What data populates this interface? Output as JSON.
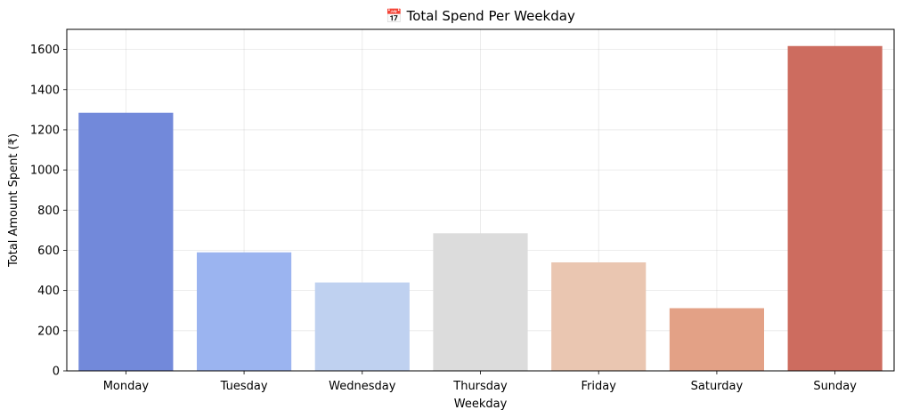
{
  "chart_data": {
    "type": "bar",
    "title": "📅 Total Spend Per Weekday",
    "xlabel": "Weekday",
    "ylabel": "Total Amount Spent (₹)",
    "categories": [
      "Monday",
      "Tuesday",
      "Wednesday",
      "Thursday",
      "Friday",
      "Saturday",
      "Sunday"
    ],
    "values": [
      1285,
      590,
      440,
      685,
      540,
      312,
      1617
    ],
    "colors": [
      "#7289da",
      "#9bb4f0",
      "#bfd1f0",
      "#dcdcdc",
      "#eac6b1",
      "#e3a186",
      "#cd6c5f"
    ],
    "ylim": [
      0,
      1700
    ],
    "yticks": [
      0,
      200,
      400,
      600,
      800,
      1000,
      1200,
      1400,
      1600
    ],
    "grid": true,
    "legend": "none"
  }
}
